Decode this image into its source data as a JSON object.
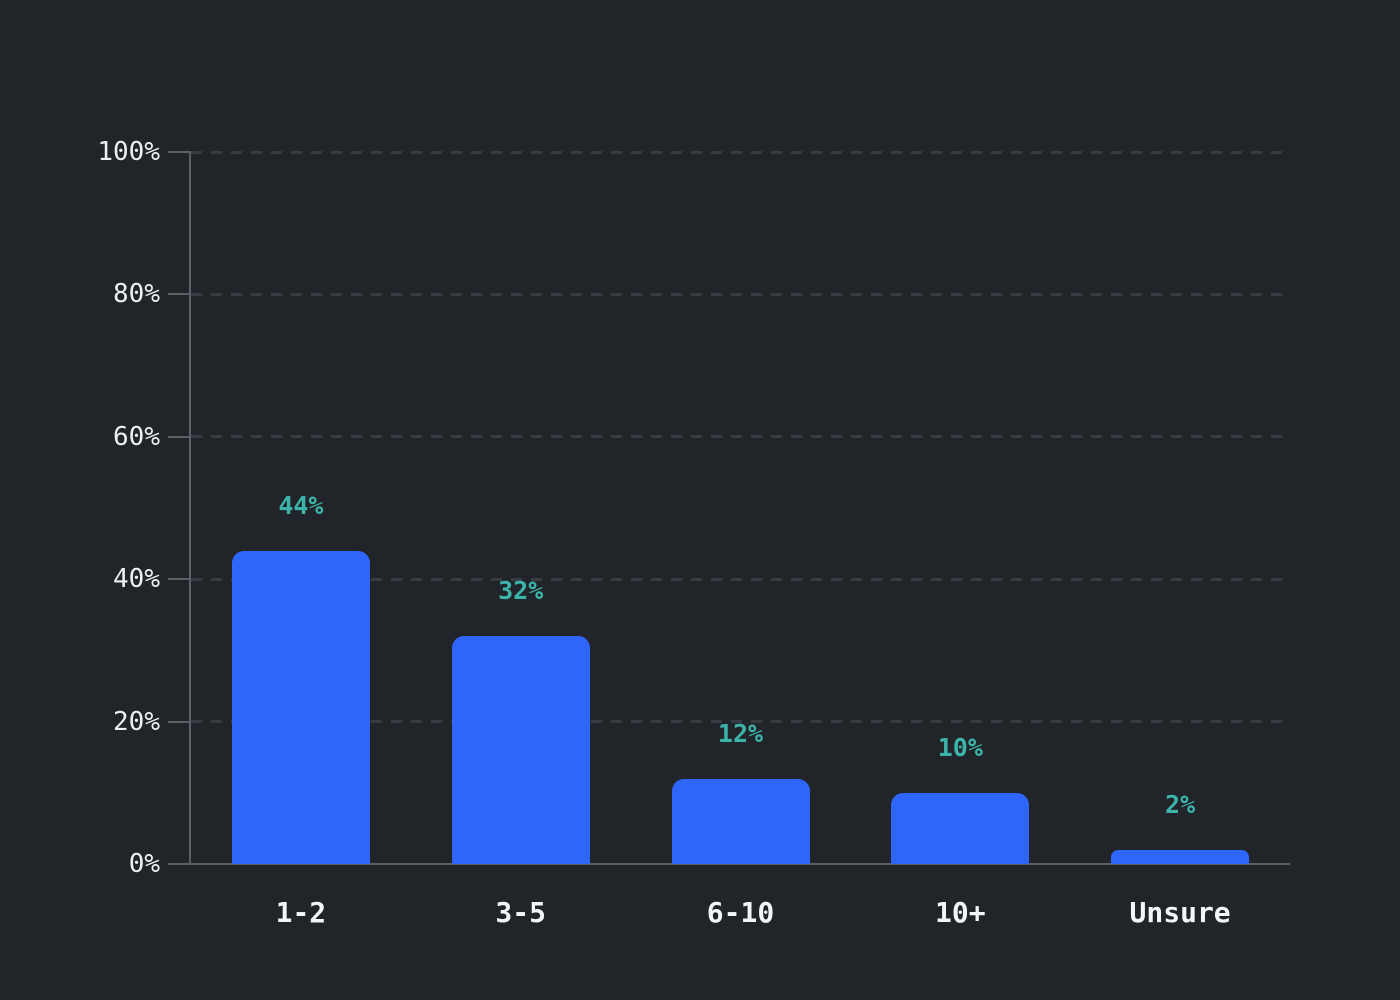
{
  "chart_data": {
    "type": "bar",
    "title": "",
    "xlabel": "",
    "ylabel": "",
    "categories": [
      "1-2",
      "3-5",
      "6-10",
      "10+",
      "Unsure"
    ],
    "values": [
      44,
      32,
      12,
      10,
      2
    ],
    "value_labels": [
      "44%",
      "32%",
      "12%",
      "10%",
      "2%"
    ],
    "y_tick_labels": [
      "0%",
      "20%",
      "40%",
      "60%",
      "80%",
      "100%"
    ],
    "y_tick_values": [
      0,
      20,
      40,
      60,
      80,
      100
    ],
    "ylim": [
      0,
      100
    ],
    "grid": "horizontal dashed lines at each y tick, none at 0",
    "legend": "none",
    "colors": {
      "background": "#212428",
      "bar": "#2e66fc",
      "value_label": "#3cb4aa",
      "axis_text": "#edeff1",
      "category_text": "#f4f5f6",
      "gridline": "#373b42",
      "axis_line": "#5c6066"
    }
  }
}
